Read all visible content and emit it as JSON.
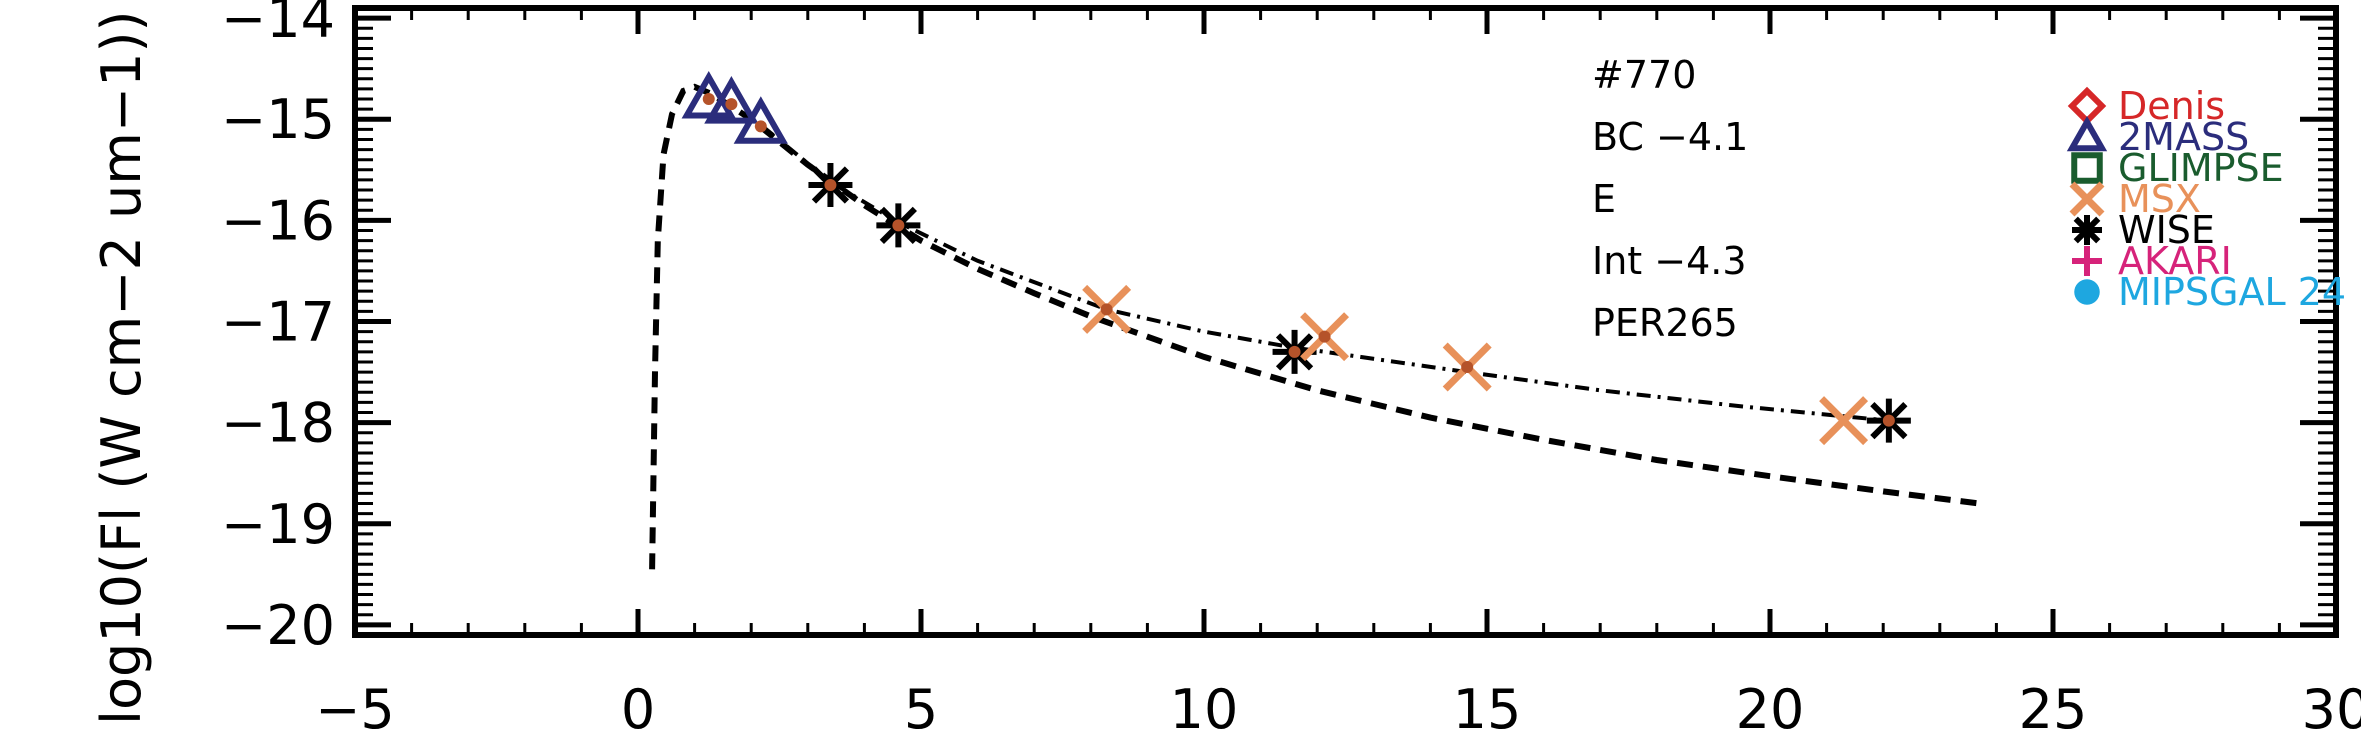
{
  "chart_data": {
    "type": "scatter",
    "ylabel": "log10(Fl (W cm−2 um−1))",
    "xlim": [
      -5,
      30
    ],
    "ylim": [
      -20.1,
      -13.9
    ],
    "x_ticks": [
      -5,
      0,
      5,
      10,
      15,
      20,
      25,
      30
    ],
    "x_tick_labels": [
      "−5",
      "0",
      "5",
      "10",
      "15",
      "20",
      "25",
      "30"
    ],
    "y_ticks": [
      -20,
      -19,
      -18,
      -17,
      -16,
      -15,
      -14
    ],
    "y_tick_labels": [
      "−20",
      "−19",
      "−18",
      "−17",
      "−16",
      "−15",
      "−14"
    ],
    "annotations": [
      "#770",
      "BC −4.1",
      "E",
      "Int −4.3",
      "PER265"
    ],
    "legend": [
      {
        "label": "Denis",
        "color": "#d62728",
        "marker": "diamond"
      },
      {
        "label": "2MASS",
        "color": "#2b2d7c",
        "marker": "triangle"
      },
      {
        "label": "GLIMPSE",
        "color": "#1a5c2e",
        "marker": "square"
      },
      {
        "label": "MSX",
        "color": "#e8915a",
        "marker": "x"
      },
      {
        "label": "WISE",
        "color": "#000000",
        "marker": "asterisk"
      },
      {
        "label": "AKARI",
        "color": "#d6237a",
        "marker": "plus"
      },
      {
        "label": "MIPSGAL 24",
        "color": "#1ea7e0",
        "marker": "circle"
      }
    ],
    "series": [
      {
        "name": "2MASS",
        "marker": "triangle",
        "color": "#2b2d7c",
        "points": [
          [
            1.25,
            -14.8
          ],
          [
            1.65,
            -14.85
          ],
          [
            2.17,
            -15.05
          ]
        ]
      },
      {
        "name": "WISE",
        "marker": "asterisk",
        "color": "#000000",
        "points": [
          [
            3.4,
            -15.65
          ],
          [
            4.6,
            -16.05
          ],
          [
            11.6,
            -17.3
          ],
          [
            22.1,
            -17.98
          ]
        ]
      },
      {
        "name": "MSX",
        "marker": "x",
        "color": "#e8915a",
        "points": [
          [
            8.28,
            -16.88
          ],
          [
            12.13,
            -17.15
          ],
          [
            14.65,
            -17.45
          ],
          [
            21.3,
            -17.98
          ]
        ]
      }
    ],
    "detected_points": [
      [
        1.25,
        -14.8
      ],
      [
        1.65,
        -14.85
      ],
      [
        2.17,
        -15.07
      ],
      [
        3.4,
        -15.65
      ],
      [
        4.6,
        -16.05
      ],
      [
        8.28,
        -16.88
      ],
      [
        11.6,
        -17.3
      ],
      [
        12.13,
        -17.15
      ],
      [
        14.65,
        -17.45
      ],
      [
        22.1,
        -17.98
      ]
    ],
    "model_dashed": [
      [
        0.25,
        -19.45
      ],
      [
        0.3,
        -17.5
      ],
      [
        0.35,
        -16.2
      ],
      [
        0.45,
        -15.35
      ],
      [
        0.6,
        -14.95
      ],
      [
        0.8,
        -14.72
      ],
      [
        1.0,
        -14.68
      ],
      [
        1.3,
        -14.75
      ],
      [
        2.0,
        -15.0
      ],
      [
        3.0,
        -15.45
      ],
      [
        4.0,
        -15.85
      ],
      [
        5.0,
        -16.2
      ],
      [
        6.0,
        -16.48
      ],
      [
        7.0,
        -16.72
      ],
      [
        8.0,
        -16.95
      ],
      [
        10.0,
        -17.35
      ],
      [
        12.0,
        -17.68
      ],
      [
        14.0,
        -17.95
      ],
      [
        16.0,
        -18.17
      ],
      [
        18.0,
        -18.37
      ],
      [
        20.0,
        -18.53
      ],
      [
        22.0,
        -18.68
      ],
      [
        23.7,
        -18.8
      ]
    ],
    "model_dashdot": [
      [
        2.2,
        -15.07
      ],
      [
        3.4,
        -15.62
      ],
      [
        4.6,
        -16.02
      ],
      [
        6.0,
        -16.4
      ],
      [
        8.28,
        -16.88
      ],
      [
        10.0,
        -17.1
      ],
      [
        11.6,
        -17.26
      ],
      [
        12.13,
        -17.3
      ],
      [
        14.65,
        -17.5
      ],
      [
        17.0,
        -17.68
      ],
      [
        19.5,
        -17.84
      ],
      [
        22.1,
        -17.98
      ]
    ]
  }
}
